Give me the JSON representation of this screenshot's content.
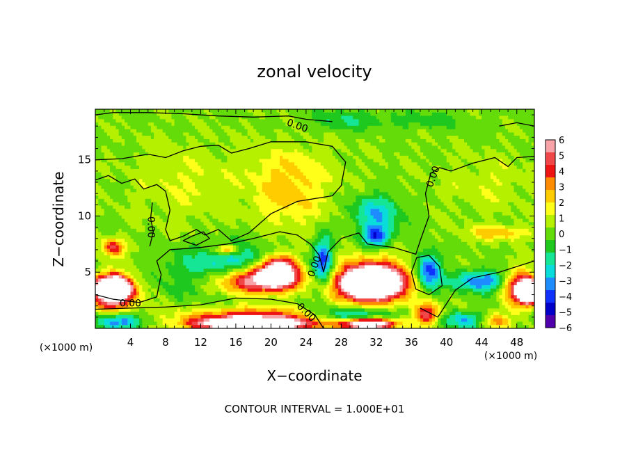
{
  "chart_data": {
    "type": "heatmap",
    "title": "zonal velocity",
    "xlabel": "X−coordinate",
    "ylabel": "Z−coordinate",
    "x_unit_left": "(×1000 m)",
    "x_unit_right": "(×1000 m)",
    "footer": "CONTOUR INTERVAL = 1.000E+01",
    "xlim": [
      0,
      50
    ],
    "ylim": [
      0,
      19.5
    ],
    "x_ticks": [
      4,
      8,
      12,
      16,
      20,
      24,
      28,
      32,
      36,
      40,
      44,
      48
    ],
    "y_ticks": [
      5,
      10,
      15
    ],
    "colorbar": {
      "range": [
        -6,
        6
      ],
      "ticks": [
        6,
        5,
        4,
        3,
        2,
        1,
        0,
        -1,
        -2,
        -3,
        -4,
        -5,
        -6
      ],
      "colors": [
        "#f7a3a8",
        "#f04848",
        "#ee1414",
        "#ff8c00",
        "#ffcc00",
        "#ffff1a",
        "#b4f000",
        "#64dc0a",
        "#1ec81e",
        "#14e696",
        "#0adcdc",
        "#1e8cff",
        "#0f32ff",
        "#0000c8",
        "#5000aa"
      ]
    },
    "contour_labels": [
      {
        "text": "0.00",
        "x": 23.0,
        "y": 18.0,
        "angle": 20
      },
      {
        "text": "0.00",
        "x": 38.5,
        "y": 13.5,
        "angle": -70
      },
      {
        "text": "0.00",
        "x": 6.3,
        "y": 9.0,
        "angle": 90
      },
      {
        "text": "0.00",
        "x": 25.0,
        "y": 5.5,
        "angle": -70
      },
      {
        "text": "0.00",
        "x": 4.0,
        "y": 2.2,
        "angle": 0
      },
      {
        "text": "0.00",
        "x": 24.0,
        "y": 1.4,
        "angle": 45
      }
    ],
    "field_regions": [
      {
        "x": 25,
        "y": 10,
        "rx": 40,
        "ry": 14,
        "v": 0.2
      },
      {
        "x": 22,
        "y": 11.5,
        "rx": 5,
        "ry": 3.5,
        "v": 1.6
      },
      {
        "x": 22,
        "y": 14,
        "rx": 6,
        "ry": 3,
        "v": 1.2
      },
      {
        "x": 10,
        "y": 13,
        "rx": 7,
        "ry": 4,
        "v": 0.9
      },
      {
        "x": 45,
        "y": 13,
        "rx": 6,
        "ry": 3,
        "v": 0.8
      },
      {
        "x": 28,
        "y": 18.5,
        "rx": 5,
        "ry": 1.2,
        "v": -1.4
      },
      {
        "x": 37,
        "y": 18.5,
        "rx": 7,
        "ry": 1.0,
        "v": -1.0
      },
      {
        "x": 32,
        "y": 10.3,
        "rx": 3.5,
        "ry": 2.0,
        "v": -3.0
      },
      {
        "x": 32,
        "y": 8.2,
        "rx": 2.2,
        "ry": 1.2,
        "v": -4.2
      },
      {
        "x": 2.0,
        "y": 7.2,
        "rx": 1.6,
        "ry": 1.0,
        "v": 4.0
      },
      {
        "x": 15,
        "y": 7.0,
        "rx": 1.5,
        "ry": 0.5,
        "v": 3.5
      },
      {
        "x": 46,
        "y": 8.5,
        "rx": 4,
        "ry": 0.8,
        "v": 2.5
      },
      {
        "x": 17,
        "y": 5.0,
        "rx": 9,
        "ry": 2.6,
        "v": -4.5
      },
      {
        "x": 18,
        "y": 4.3,
        "rx": 6,
        "ry": 1.6,
        "v": 9.0
      },
      {
        "x": 21,
        "y": 5.2,
        "rx": 2.8,
        "ry": 1.8,
        "v": 9.0
      },
      {
        "x": 26,
        "y": 6.0,
        "rx": 1.3,
        "ry": 2.6,
        "v": -4.0
      },
      {
        "x": 31.5,
        "y": 4.0,
        "rx": 5.5,
        "ry": 2.6,
        "v": 5.5
      },
      {
        "x": 31.5,
        "y": 4.1,
        "rx": 4.0,
        "ry": 1.6,
        "v": 9.0
      },
      {
        "x": 38,
        "y": 5.0,
        "rx": 1.8,
        "ry": 2.2,
        "v": -4.8
      },
      {
        "x": 37.8,
        "y": 1.3,
        "rx": 1.8,
        "ry": 1.2,
        "v": 5.0
      },
      {
        "x": 2.0,
        "y": 3.2,
        "rx": 3.2,
        "ry": 2.0,
        "v": 7.0
      },
      {
        "x": 2.0,
        "y": 3.6,
        "rx": 2.2,
        "ry": 1.1,
        "v": 9.0
      },
      {
        "x": 48.5,
        "y": 3.5,
        "rx": 2.5,
        "ry": 2.0,
        "v": 6.0
      },
      {
        "x": 49.3,
        "y": 3.3,
        "rx": 1.2,
        "ry": 1.2,
        "v": 9.0
      },
      {
        "x": 44,
        "y": 4.2,
        "rx": 4,
        "ry": 1.2,
        "v": -3.8
      },
      {
        "x": 18,
        "y": 0.8,
        "rx": 10,
        "ry": 1.3,
        "v": 5.0
      },
      {
        "x": 18,
        "y": 0.4,
        "rx": 7,
        "ry": 0.6,
        "v": 9.0
      },
      {
        "x": 2.5,
        "y": 0.6,
        "rx": 3.5,
        "ry": 0.9,
        "v": -4.0
      },
      {
        "x": 31,
        "y": 0.4,
        "rx": 4,
        "ry": 0.6,
        "v": 9.0
      },
      {
        "x": 29.5,
        "y": 1.2,
        "rx": 6,
        "ry": 1.0,
        "v": -3.5
      },
      {
        "x": 42,
        "y": 0.7,
        "rx": 3,
        "ry": 1.0,
        "v": -3.0
      },
      {
        "x": 45.5,
        "y": 0.6,
        "rx": 2,
        "ry": 0.8,
        "v": 3.0
      }
    ]
  }
}
